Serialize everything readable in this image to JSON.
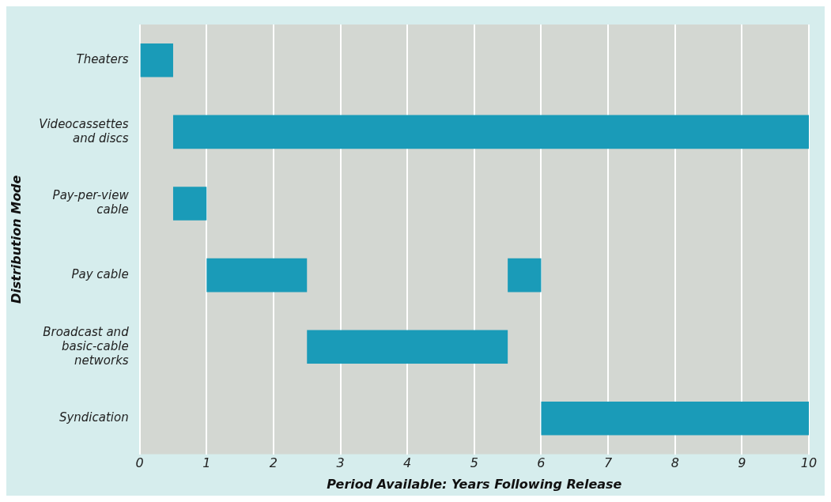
{
  "chart_data": {
    "type": "bar",
    "orientation": "horizontal",
    "xlabel": "Period Available: Years Following Release",
    "ylabel": "Distribution Mode",
    "categories": [
      "Theaters",
      "Videocassettes and discs",
      "Pay-per-view cable",
      "Pay cable",
      "Broadcast and basic-cable networks",
      "Syndication"
    ],
    "series": [
      {
        "color": "#1a9bb8",
        "base": [
          0,
          0.5,
          0.5,
          1,
          2.5,
          6
        ],
        "values": [
          0.5,
          9.5,
          0.5,
          1.5,
          3,
          4
        ]
      },
      {
        "color": "#1a9bb8",
        "base": [
          null,
          null,
          null,
          5.5,
          null,
          null
        ],
        "values": [
          null,
          null,
          null,
          0.5,
          null,
          null
        ]
      }
    ],
    "xlim": [
      0,
      10
    ],
    "xticks": [
      0,
      1,
      2,
      3,
      4,
      5,
      6,
      7,
      8,
      9,
      10
    ],
    "grid": "x",
    "legend": false
  }
}
